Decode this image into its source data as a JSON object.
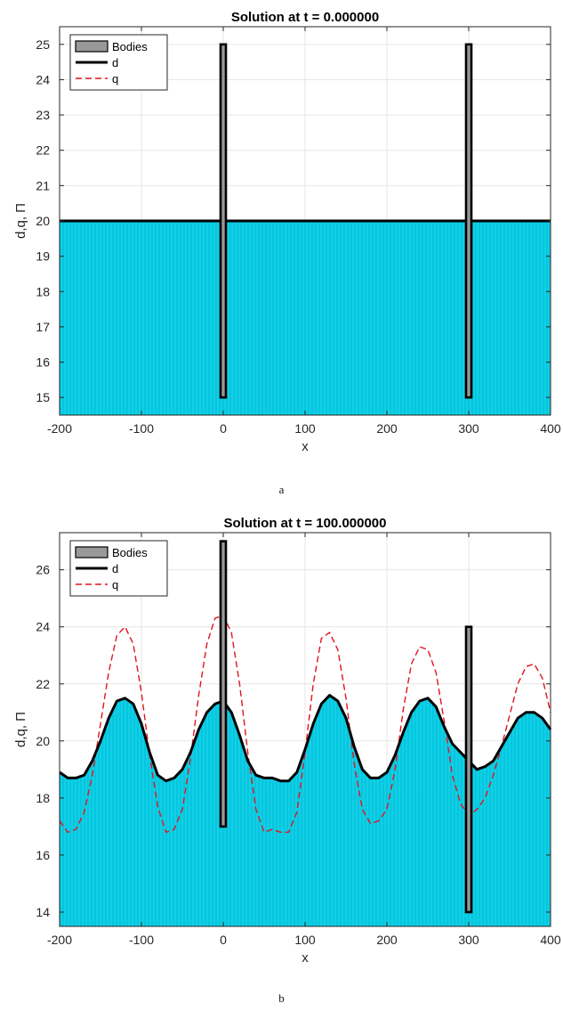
{
  "captions": {
    "a": "a",
    "b": "b"
  },
  "colors": {
    "fill": "#00c8e0",
    "d_line": "#000000",
    "q_line": "#e0141e",
    "body_fill": "#999999",
    "grid": "#e6e6e6"
  },
  "chart_data": [
    {
      "id": "a",
      "type": "line",
      "title": "Solution at t = 0.000000",
      "xlabel": "x",
      "ylabel": "d,q, Π",
      "xlim": [
        -200,
        400
      ],
      "ylim": [
        14.5,
        25.5
      ],
      "xticks": [
        -200,
        -100,
        0,
        100,
        200,
        300,
        400
      ],
      "xtick_labels": [
        "-200",
        "-100",
        "0",
        "100",
        "200",
        "300",
        "400"
      ],
      "yticks": [
        15,
        16,
        17,
        18,
        19,
        20,
        21,
        22,
        23,
        24,
        25
      ],
      "ytick_labels": [
        "15",
        "16",
        "17",
        "18",
        "19",
        "20",
        "21",
        "22",
        "23",
        "24",
        "25"
      ],
      "grid": true,
      "legend": {
        "position": "top-left",
        "entries": [
          "Bodies",
          "d",
          "q"
        ]
      },
      "bodies": [
        {
          "x": 0,
          "bottom": 15,
          "top": 25
        },
        {
          "x": 300,
          "bottom": 15,
          "top": 25
        }
      ],
      "series": [
        {
          "name": "d",
          "style": "solid",
          "x": [
            -200,
            400
          ],
          "y": [
            20,
            20
          ]
        },
        {
          "name": "q",
          "style": "dashed",
          "x": [
            -200,
            400
          ],
          "y": [
            20,
            20
          ]
        }
      ]
    },
    {
      "id": "b",
      "type": "line",
      "title": "Solution at t = 100.000000",
      "xlabel": "x",
      "ylabel": "d,q, Π",
      "xlim": [
        -200,
        400
      ],
      "ylim": [
        13.5,
        27.3
      ],
      "xticks": [
        -200,
        -100,
        0,
        100,
        200,
        300,
        400
      ],
      "xtick_labels": [
        "-200",
        "-100",
        "0",
        "100",
        "200",
        "300",
        "400"
      ],
      "yticks": [
        14,
        16,
        18,
        20,
        22,
        24,
        26
      ],
      "ytick_labels": [
        "14",
        "16",
        "18",
        "20",
        "22",
        "24",
        "26"
      ],
      "grid": true,
      "legend": {
        "position": "top-left",
        "entries": [
          "Bodies",
          "d",
          "q"
        ]
      },
      "bodies": [
        {
          "x": 0,
          "bottom": 17,
          "top": 27
        },
        {
          "x": 300,
          "bottom": 14,
          "top": 24
        }
      ],
      "series": [
        {
          "name": "d",
          "style": "solid",
          "x": [
            -200,
            -190,
            -180,
            -170,
            -160,
            -150,
            -140,
            -130,
            -120,
            -110,
            -100,
            -90,
            -80,
            -70,
            -60,
            -50,
            -40,
            -30,
            -20,
            -10,
            0,
            10,
            20,
            30,
            40,
            50,
            60,
            70,
            80,
            90,
            100,
            110,
            120,
            130,
            140,
            150,
            160,
            170,
            180,
            190,
            200,
            210,
            220,
            230,
            240,
            250,
            260,
            270,
            280,
            290,
            300,
            310,
            320,
            330,
            340,
            350,
            360,
            370,
            380,
            390,
            400
          ],
          "y": [
            18.9,
            18.7,
            18.7,
            18.8,
            19.3,
            20.0,
            20.8,
            21.4,
            21.5,
            21.3,
            20.6,
            19.6,
            18.8,
            18.6,
            18.7,
            19.0,
            19.6,
            20.4,
            21.0,
            21.3,
            21.4,
            21.0,
            20.2,
            19.3,
            18.8,
            18.7,
            18.7,
            18.6,
            18.6,
            18.9,
            19.7,
            20.6,
            21.3,
            21.6,
            21.4,
            20.8,
            19.8,
            19.0,
            18.7,
            18.7,
            18.9,
            19.5,
            20.3,
            21.0,
            21.4,
            21.5,
            21.2,
            20.5,
            19.9,
            19.6,
            19.3,
            19.0,
            19.1,
            19.3,
            19.8,
            20.3,
            20.8,
            21.0,
            21.0,
            20.8,
            20.4
          ]
        },
        {
          "name": "q",
          "style": "dashed",
          "x": [
            -200,
            -190,
            -180,
            -170,
            -160,
            -150,
            -140,
            -130,
            -120,
            -110,
            -100,
            -90,
            -80,
            -70,
            -60,
            -50,
            -40,
            -30,
            -20,
            -10,
            0,
            10,
            20,
            30,
            40,
            50,
            60,
            70,
            80,
            90,
            100,
            110,
            120,
            130,
            140,
            150,
            160,
            170,
            180,
            190,
            200,
            210,
            220,
            230,
            240,
            250,
            260,
            270,
            280,
            290,
            300,
            310,
            320,
            330,
            340,
            350,
            360,
            370,
            380,
            390,
            400
          ],
          "y": [
            17.2,
            16.8,
            16.9,
            17.5,
            18.8,
            20.6,
            22.4,
            23.7,
            24.0,
            23.4,
            21.7,
            19.5,
            17.7,
            16.8,
            16.9,
            17.6,
            19.4,
            21.6,
            23.4,
            24.3,
            24.4,
            23.8,
            22.0,
            19.6,
            17.6,
            16.8,
            16.9,
            16.8,
            16.8,
            17.5,
            19.6,
            22.0,
            23.6,
            23.8,
            23.2,
            21.5,
            19.2,
            17.6,
            17.1,
            17.2,
            17.6,
            19.0,
            21.1,
            22.7,
            23.3,
            23.2,
            22.4,
            20.7,
            18.8,
            17.8,
            17.4,
            17.6,
            18.0,
            18.8,
            19.8,
            20.9,
            22.0,
            22.6,
            22.7,
            22.2,
            21.0
          ]
        }
      ]
    }
  ]
}
